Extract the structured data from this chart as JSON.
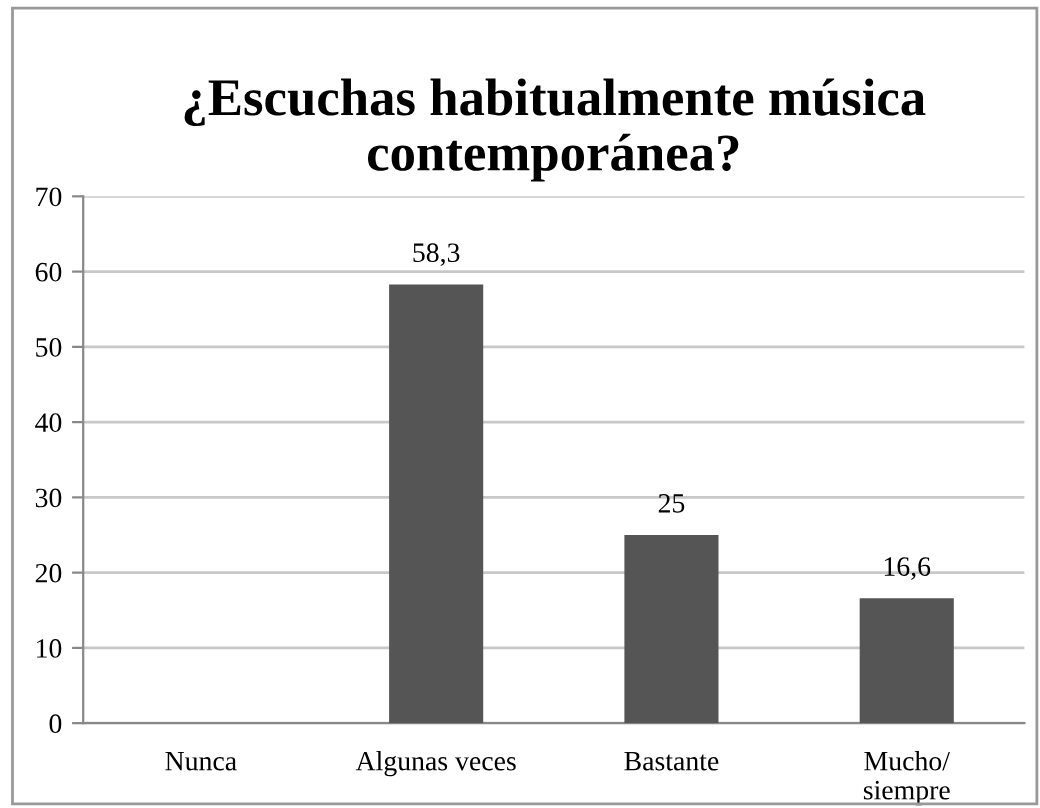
{
  "chart_data": {
    "type": "bar",
    "title": "¿Escuchas habitualmente música contemporánea?",
    "categories": [
      "Nunca",
      "Algunas veces",
      "Bastante",
      "Mucho/\nsiempre"
    ],
    "values": [
      null,
      58.3,
      25,
      16.6
    ],
    "value_labels": [
      null,
      "58,3",
      "25",
      "16,6"
    ],
    "color": "#555555",
    "ylim": [
      0,
      70
    ],
    "yticks": [
      0,
      10,
      20,
      30,
      40,
      50,
      60,
      70
    ],
    "grid": "y",
    "legend": false
  }
}
